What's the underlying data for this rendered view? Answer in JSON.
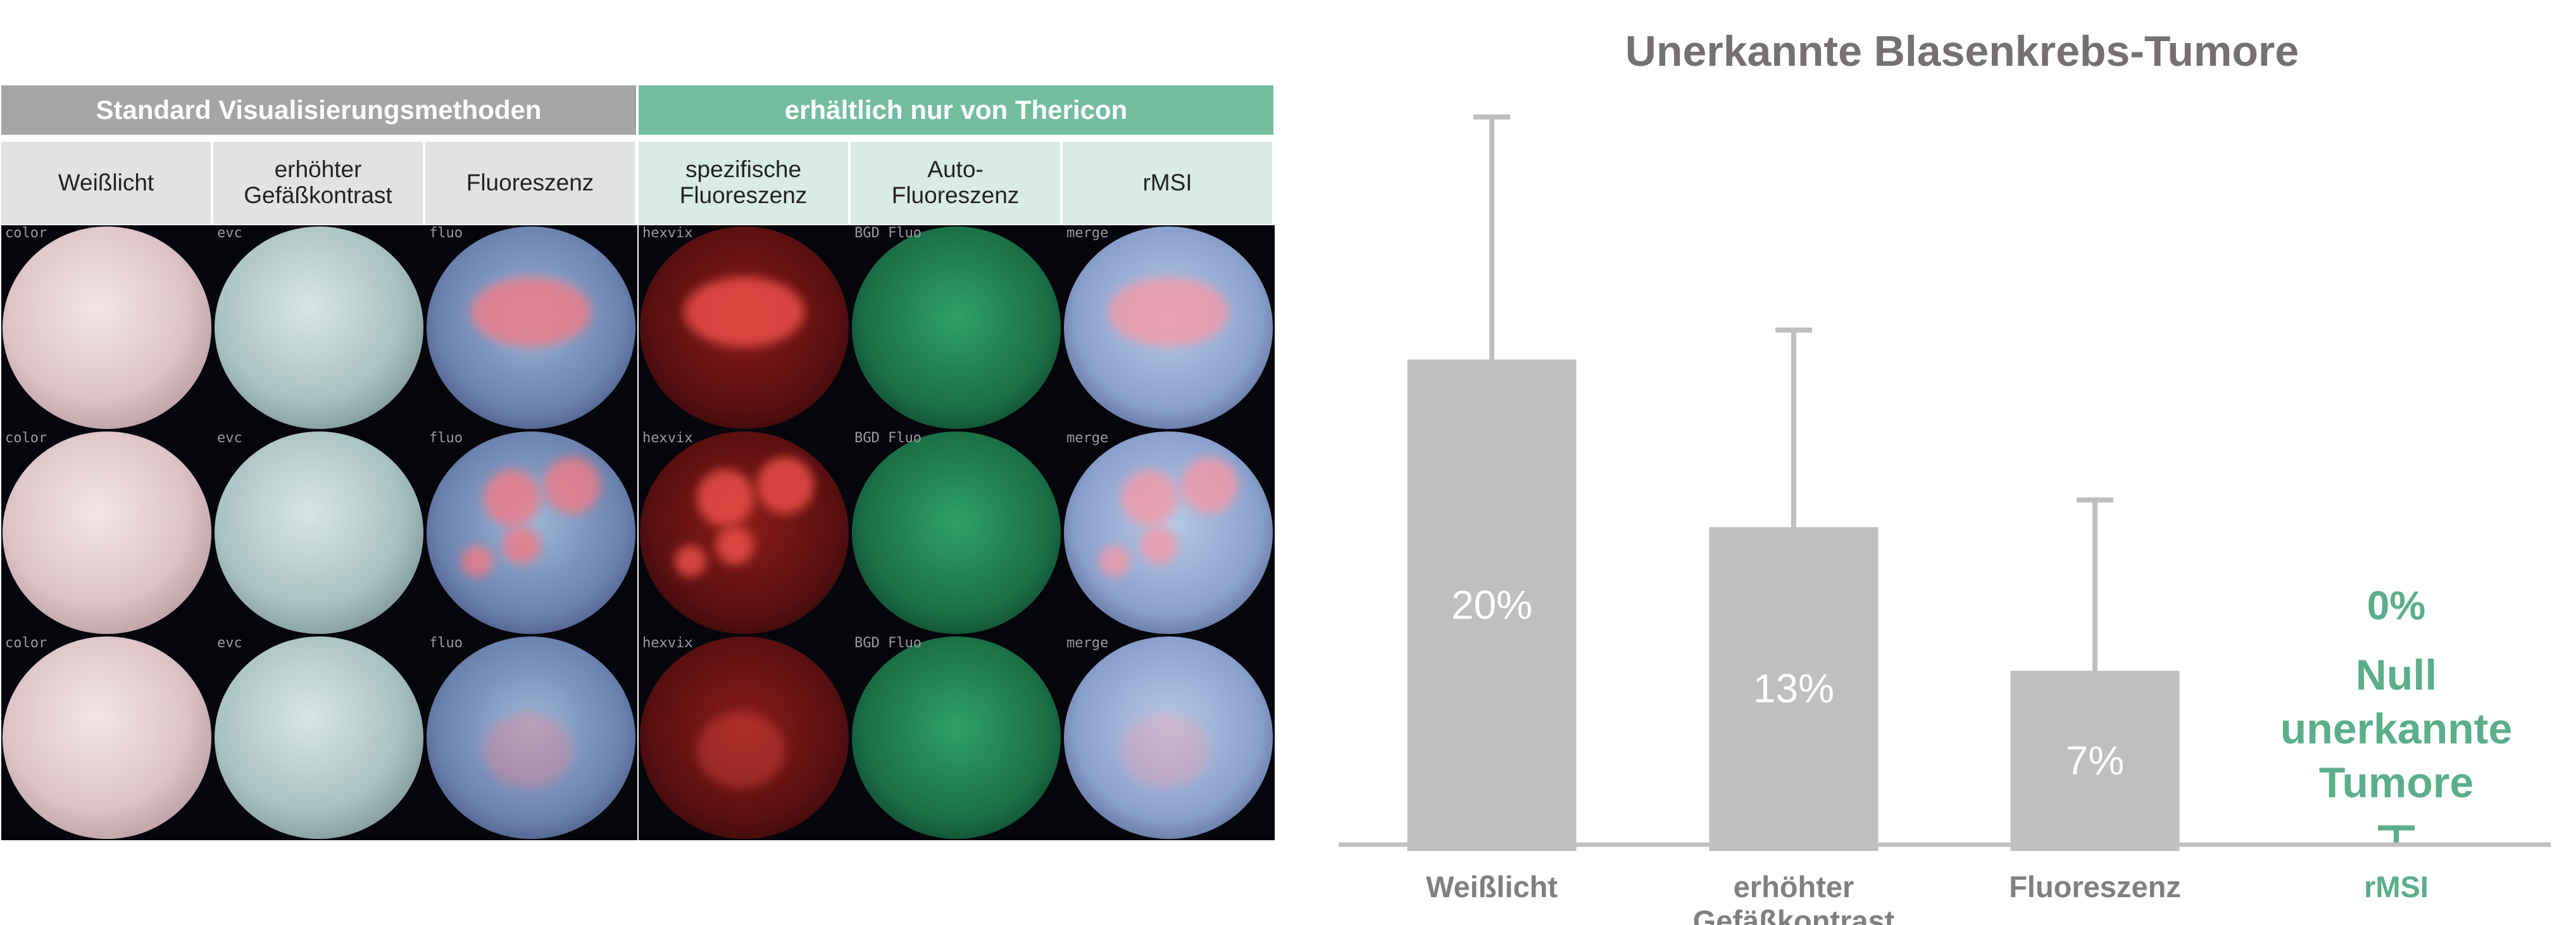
{
  "table": {
    "groups": [
      "Standard Visualisierungsmethoden",
      "erhältlich nur von Thericon"
    ],
    "columns": [
      "Weißlicht",
      "erhöhter Gefäßkontrast",
      "Fluoreszenz",
      "spezifische Fluoreszenz",
      "Auto-Fluoreszenz",
      "rMSI"
    ],
    "image_labels": [
      [
        "color",
        "evc",
        "fluo",
        "hexvix",
        "BGD Fluo",
        "merge"
      ],
      [
        "color",
        "evc",
        "fluo",
        "hexvix",
        "BGD Fluo",
        "merge"
      ],
      [
        "color",
        "evc",
        "fluo",
        "hexvix",
        "BGD Fluo",
        "merge"
      ]
    ]
  },
  "chart_data": {
    "type": "bar",
    "title": "Unerkannte Blasenkrebs-Tumore",
    "categories": [
      "Weißlicht",
      "erhöhter Gefäßkontrast",
      "Fluoreszenz",
      "rMSI"
    ],
    "values": [
      20,
      13,
      7,
      0
    ],
    "value_labels": [
      "20%",
      "13%",
      "7%",
      "0%"
    ],
    "errors": [
      10.4,
      8.5,
      7.4,
      0.7
    ],
    "colors": [
      "#bfbfbf",
      "#bfbfbf",
      "#bfbfbf",
      "#5aae8c"
    ],
    "ylim": [
      0,
      30
    ],
    "annotation": "Null unerkannte Tumore"
  }
}
